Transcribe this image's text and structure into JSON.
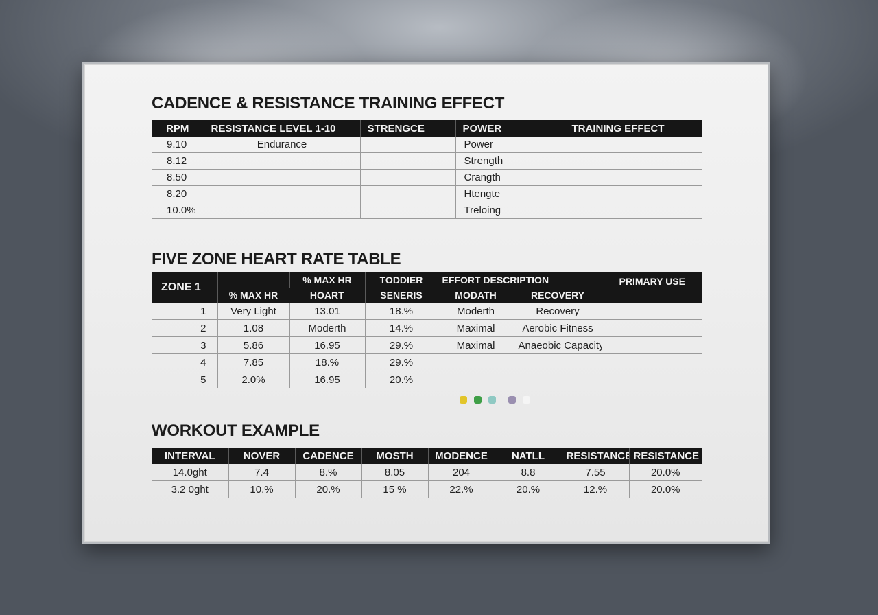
{
  "cadence": {
    "title": "CADENCE & RESISTANCE TRAINING EFFECT",
    "headers": [
      "RPM",
      "RESISTANCE LEVEL 1-10",
      "STRENGCE",
      "POWER",
      "TRAINING EFFECT"
    ],
    "rows": [
      [
        "9.10",
        "Endurance",
        "",
        "Power",
        ""
      ],
      [
        "8.12",
        "",
        "",
        "Strength",
        ""
      ],
      [
        "8.50",
        "",
        "",
        "Crangth",
        ""
      ],
      [
        "8.20",
        "",
        "",
        "Htengte",
        ""
      ],
      [
        "10.0%",
        "",
        "",
        "Treloing",
        ""
      ]
    ]
  },
  "heart": {
    "title": "FIVE ZONE HEART RATE TABLE",
    "headers": {
      "zone": "ZONE 1",
      "max_hr": "% MAX HR",
      "max_hr_2_line1": "% MAX HR",
      "max_hr_2_line2": "HOART",
      "todder_line1": "TODDIER",
      "todder_line2": "SENERIS",
      "effort": "EFFORT DESCRIPTION",
      "modath": "MODATH",
      "recovery": "RECOVERY",
      "primary": "PRIMARY USE"
    },
    "rows": [
      [
        "1",
        "Very Light",
        "13.01",
        "18.%",
        "Moderth",
        "Recovery",
        ""
      ],
      [
        "2",
        "1.08",
        "Moderth",
        "14.%",
        "Maximal",
        "Aerobic Fitness",
        ""
      ],
      [
        "3",
        "5.86",
        "16.95",
        "29.%",
        "Maximal",
        "Anaeobic Capacity",
        ""
      ],
      [
        "4",
        "7.85",
        "18.%",
        "29.%",
        "",
        "",
        ""
      ],
      [
        "5",
        "2.0%",
        "16.95",
        "20.%",
        "",
        "",
        ""
      ]
    ]
  },
  "legend_dots": [
    {
      "name": "yellow-dot",
      "color": "#e2c52a"
    },
    {
      "name": "green-dot",
      "color": "#3f9f47"
    },
    {
      "name": "teal-dot",
      "color": "#8fc9c3"
    },
    {
      "name": "purple-dot",
      "color": "#9a8fb0"
    },
    {
      "name": "white-dot",
      "color": "#f5f5f5"
    }
  ],
  "workout": {
    "title": "WORKOUT EXAMPLE",
    "headers": [
      "INTERVAL",
      "NOVER",
      "CADENCE",
      "MOSTH",
      "MODENCE",
      "NATLL",
      "RESISTANCE",
      "RESISTANCE"
    ],
    "rows": [
      [
        "14.0ght",
        "7.4",
        "8.%",
        "8.05",
        "204",
        "8.8",
        "7.55",
        "20.0%"
      ],
      [
        "3.2 0ght",
        "10.%",
        "20.%",
        "15 %",
        "22.%",
        "20.%",
        "12.%",
        "20.0%"
      ]
    ]
  }
}
